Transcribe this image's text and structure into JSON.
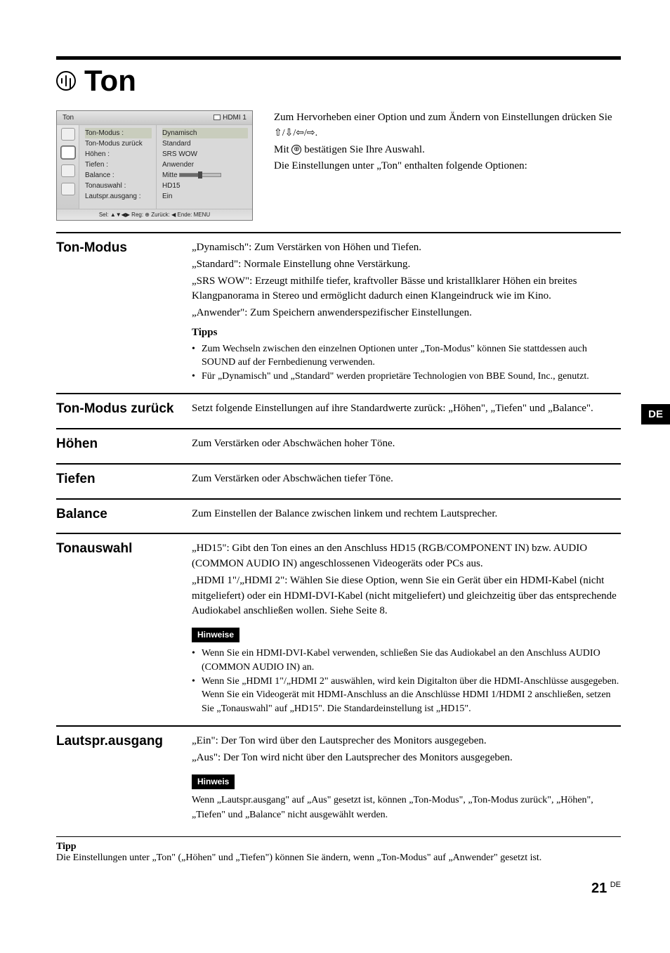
{
  "page": {
    "title": "Ton",
    "side_tab": "DE",
    "page_number": "21",
    "page_suffix": "DE"
  },
  "osd": {
    "header_left": "Ton",
    "header_right": "HDMI 1",
    "rows": [
      {
        "label": "Ton-Modus :",
        "value": "Dynamisch"
      },
      {
        "label": "Ton-Modus zurück",
        "value": "Standard"
      },
      {
        "label": "Höhen :",
        "value": "SRS WOW"
      },
      {
        "label": "Tiefen :",
        "value": "Anwender"
      },
      {
        "label": "Balance :",
        "value": "Mitte"
      },
      {
        "label": "Tonauswahl :",
        "value": "HD15"
      },
      {
        "label": "Lautspr.ausgang :",
        "value": "Ein"
      }
    ],
    "footer": "Sel:  ▲▼◀▶  Reg: ⊕  Zurück: ◀  Ende: MENU"
  },
  "intro": {
    "line1": "Zum Hervorheben einer Option und zum Ändern von Einstellungen drücken Sie ",
    "arrows": "⇧/⇩/⇦/⇨.",
    "line2a": "Mit ",
    "line2_key": "⊕",
    "line2b": " bestätigen Sie Ihre Auswahl.",
    "line3": "Die Einstellungen unter „Ton\" enthalten folgende Optionen:"
  },
  "sections": {
    "ton_modus": {
      "label": "Ton-Modus",
      "p1": "„Dynamisch\": Zum Verstärken von Höhen und Tiefen.",
      "p2": "„Standard\": Normale Einstellung ohne Verstärkung.",
      "p3": "„SRS WOW\": Erzeugt mithilfe tiefer, kraftvoller Bässe und kristallklarer Höhen ein breites Klangpanorama in Stereo und ermöglicht dadurch einen Klangeindruck wie im Kino.",
      "p4": "„Anwender\": Zum Speichern anwenderspezifischer Einstellungen.",
      "tipps_label": "Tipps",
      "tip1": "Zum Wechseln zwischen den einzelnen Optionen unter „Ton-Modus\" können Sie stattdessen auch SOUND auf der Fernbedienung verwenden.",
      "tip2": "Für „Dynamisch\" und „Standard\" werden proprietäre Technologien von BBE Sound, Inc., genutzt."
    },
    "ton_modus_zurueck": {
      "label": "Ton-Modus zurück",
      "p1": "Setzt folgende Einstellungen auf ihre Standardwerte zurück: „Höhen\", „Tiefen\" und „Balance\"."
    },
    "hoehen": {
      "label": "Höhen",
      "p1": "Zum Verstärken oder Abschwächen hoher Töne."
    },
    "tiefen": {
      "label": "Tiefen",
      "p1": "Zum Verstärken oder Abschwächen tiefer Töne."
    },
    "balance": {
      "label": "Balance",
      "p1": "Zum Einstellen der Balance zwischen linkem und rechtem Lautsprecher."
    },
    "tonauswahl": {
      "label": "Tonauswahl",
      "p1": "„HD15\": Gibt den Ton eines an den Anschluss HD15 (RGB/COMPONENT IN) bzw. AUDIO (COMMON AUDIO IN) angeschlossenen Videogeräts oder PCs aus.",
      "p2": "„HDMI 1\"/„HDMI 2\": Wählen Sie diese Option, wenn Sie ein Gerät über ein HDMI-Kabel (nicht mitgeliefert) oder ein HDMI-DVI-Kabel (nicht mitgeliefert) und gleichzeitig über das entsprechende Audiokabel anschließen wollen. Siehe Seite 8.",
      "hinweise_label": "Hinweise",
      "h1": "Wenn Sie ein HDMI-DVI-Kabel verwenden, schließen Sie das Audiokabel an den Anschluss AUDIO (COMMON AUDIO IN) an.",
      "h2": "Wenn Sie „HDMI 1\"/„HDMI 2\" auswählen, wird kein Digitalton über die HDMI-Anschlüsse ausgegeben. Wenn Sie ein Videogerät mit HDMI-Anschluss an die Anschlüsse HDMI 1/HDMI 2 anschließen, setzen Sie „Tonauswahl\" auf „HD15\". Die Standardeinstellung ist „HD15\"."
    },
    "lautspr": {
      "label": "Lautspr.ausgang",
      "p1": "„Ein\": Der Ton wird über den Lautsprecher des Monitors ausgegeben.",
      "p2": "„Aus\": Der Ton wird nicht über den Lautsprecher des Monitors ausgegeben.",
      "hinweis_label": "Hinweis",
      "h1": "Wenn „Lautspr.ausgang\" auf „Aus\" gesetzt ist, können „Ton-Modus\", „Ton-Modus zurück\", „Höhen\", „Tiefen\" und „Balance\" nicht ausgewählt werden."
    }
  },
  "bottom": {
    "label": "Tipp",
    "text": "Die Einstellungen unter „Ton\" („Höhen\" und „Tiefen\") können Sie ändern, wenn „Ton-Modus\" auf „Anwender\" gesetzt ist."
  }
}
